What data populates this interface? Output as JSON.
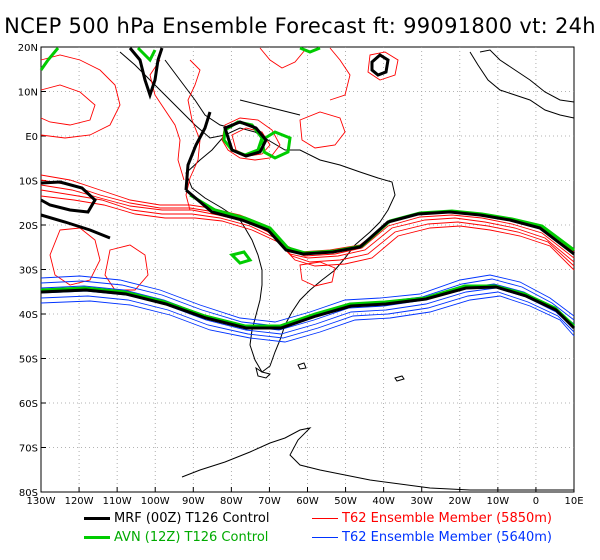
{
  "title": "NCEP 500 hPa Ensemble Forecast  ft: 99091800 vt: 24h",
  "lat_ticks": [
    "20N",
    "10N",
    "E0",
    "10S",
    "20S",
    "30S",
    "40S",
    "50S",
    "60S",
    "70S",
    "80S"
  ],
  "lon_ticks": [
    "130W",
    "120W",
    "110W",
    "100W",
    "90W",
    "80W",
    "70W",
    "60W",
    "50W",
    "40W",
    "30W",
    "20W",
    "10W",
    "0",
    "10E"
  ],
  "legend": [
    {
      "label": "MRF (00Z) T126 Control",
      "color": "#000000",
      "width": 3
    },
    {
      "label": "T62 Ensemble Member (5850m)",
      "color": "#ff0000",
      "width": 1
    },
    {
      "label": "AVN (12Z) T126 Control",
      "color": "#00cc00",
      "width": 3
    },
    {
      "label": "T62 Ensemble Member (5640m)",
      "color": "#0033ff",
      "width": 1
    }
  ],
  "colors": {
    "mrf": "#000000",
    "avn": "#00cc00",
    "ens_5850": "#ff0000",
    "ens_5640": "#0033ff",
    "grid": "#9a9a9a"
  },
  "map": {
    "lon_range": [
      -130,
      10
    ],
    "lat_range": [
      -80,
      20
    ]
  }
}
